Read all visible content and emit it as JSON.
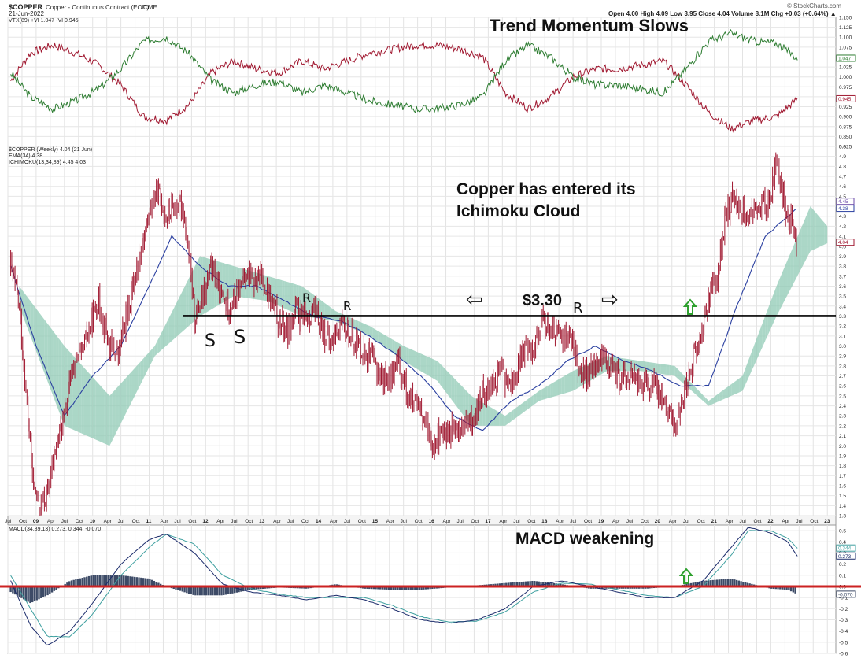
{
  "header": {
    "symbol": "$COPPER",
    "name": "Copper - Continuous Contract (EOD)",
    "exchange": "CME",
    "date": "21-Jun-2022",
    "brand": "© StockCharts.com",
    "quote": "Open 4.00  High 4.09  Low 3.95  Close 4.04  Volume 8.1M  Chg +0.03 (+0.64%) ▲"
  },
  "colors": {
    "vi_plus": "#2e7d32",
    "vi_minus": "#a01830",
    "price": "#a01830",
    "ema": "#2a3fa0",
    "cloud_bull": "#8fc9b4",
    "cloud_bear": "#c8a2e8",
    "macd": "#1a2a6a",
    "signal": "#3fa0a0",
    "histogram": "#3c4a66",
    "support_line": "#000000",
    "zero_line": "#cc2222",
    "up_arrow": "#2ea02e"
  },
  "annotations": {
    "trend_title": "Trend Momentum Slows",
    "cloud_line1": "Copper has entered its",
    "cloud_line2": "Ichimoku Cloud",
    "level": "$3.30",
    "macd_title": "MACD weakening",
    "resistance_marks": [
      "R",
      "R",
      "R"
    ],
    "support_marks": [
      "S",
      "S"
    ],
    "left_arrow": "⇦",
    "right_arrow": "⇨"
  },
  "chart_data": [
    {
      "type": "line",
      "panel": "vortex",
      "legend": "VTX(89) +VI 1.047 -VI 0.945",
      "ylim": [
        0.825,
        1.15
      ],
      "yticks": [
        1.15,
        1.125,
        1.1,
        1.075,
        1.05,
        1.025,
        1.0,
        0.975,
        0.95,
        0.925,
        0.9,
        0.875,
        0.85,
        0.825
      ],
      "ytick_labels": [
        "1.150",
        "1.125",
        "1.100",
        "1.075",
        "1.050",
        "1.025",
        "1.000",
        "0.975",
        "0.950",
        "0.925",
        "0.900",
        "0.875",
        "0.850",
        "0.825"
      ],
      "value_tags": [
        1.047,
        0.945
      ],
      "series": [
        {
          "name": "+VI",
          "x": [
            2008.55,
            2008.9,
            2009.3,
            2009.7,
            2010.1,
            2010.5,
            2010.9,
            2011.3,
            2011.7,
            2012.1,
            2012.5,
            2012.9,
            2013.3,
            2013.7,
            2014.1,
            2014.5,
            2014.9,
            2015.3,
            2015.7,
            2016.1,
            2016.5,
            2016.9,
            2017.3,
            2017.7,
            2018.1,
            2018.5,
            2018.9,
            2019.3,
            2019.7,
            2020.1,
            2020.5,
            2020.9,
            2021.3,
            2021.7,
            2022.1,
            2022.47
          ],
          "y": [
            1.01,
            0.95,
            0.92,
            0.94,
            0.97,
            1.02,
            1.09,
            1.1,
            1.06,
            0.99,
            0.96,
            0.98,
            0.99,
            0.96,
            0.98,
            0.96,
            0.94,
            0.93,
            0.92,
            0.92,
            0.93,
            0.95,
            1.04,
            1.08,
            1.05,
            1.0,
            0.98,
            0.98,
            0.97,
            0.96,
            1.02,
            1.09,
            1.11,
            1.09,
            1.085,
            1.047
          ]
        },
        {
          "name": "-VI",
          "x": [
            2008.55,
            2008.9,
            2009.3,
            2009.7,
            2010.1,
            2010.5,
            2010.9,
            2011.3,
            2011.7,
            2012.1,
            2012.5,
            2012.9,
            2013.3,
            2013.7,
            2014.1,
            2014.5,
            2014.9,
            2015.3,
            2015.7,
            2016.1,
            2016.5,
            2016.9,
            2017.3,
            2017.7,
            2018.1,
            2018.5,
            2018.9,
            2019.3,
            2019.7,
            2020.1,
            2020.5,
            2020.9,
            2021.3,
            2021.7,
            2022.1,
            2022.47
          ],
          "y": [
            0.99,
            1.06,
            1.08,
            1.06,
            1.03,
            0.98,
            0.9,
            0.89,
            0.93,
            1.01,
            1.04,
            1.02,
            1.01,
            1.04,
            1.02,
            1.04,
            1.06,
            1.07,
            1.08,
            1.08,
            1.07,
            1.05,
            0.96,
            0.92,
            0.95,
            1.0,
            1.02,
            1.02,
            1.03,
            1.04,
            0.98,
            0.91,
            0.87,
            0.89,
            0.9,
            0.945
          ]
        }
      ]
    },
    {
      "type": "line",
      "panel": "price",
      "legend_lines": [
        "$COPPER (Weekly) 4.04 (21 Jun)",
        "EMA(34) 4.38",
        "ICHIMOKU(13,34,89) 4.45 4.03"
      ],
      "x_ticks": [
        "Jul",
        "Oct",
        "09",
        "Apr",
        "Jul",
        "Oct",
        "10",
        "Apr",
        "Jul",
        "Oct",
        "11",
        "Apr",
        "Jul",
        "Oct",
        "12",
        "Apr",
        "Jul",
        "Oct",
        "13",
        "Apr",
        "Jul",
        "Oct",
        "14",
        "Apr",
        "Jul",
        "Oct",
        "15",
        "Apr",
        "Jul",
        "Oct",
        "16",
        "Apr",
        "Jul",
        "Oct",
        "17",
        "Apr",
        "Jul",
        "Oct",
        "18",
        "Apr",
        "Jul",
        "Oct",
        "19",
        "Apr",
        "Jul",
        "Oct",
        "20",
        "Apr",
        "Jul",
        "Oct",
        "21",
        "Apr",
        "Jul",
        "Oct",
        "22",
        "Apr",
        "Jul",
        "Oct",
        "23"
      ],
      "xlim": [
        2008.5,
        2023.15
      ],
      "ylim": [
        1.3,
        5.0
      ],
      "yticks": [
        5.0,
        4.9,
        4.8,
        4.7,
        4.6,
        4.5,
        4.4,
        4.3,
        4.2,
        4.1,
        4.0,
        3.9,
        3.8,
        3.7,
        3.6,
        3.5,
        3.4,
        3.3,
        3.2,
        3.1,
        3.0,
        2.9,
        2.8,
        2.7,
        2.6,
        2.5,
        2.4,
        2.3,
        2.2,
        2.1,
        2.0,
        1.9,
        1.8,
        1.7,
        1.6,
        1.5,
        1.4,
        1.3
      ],
      "ytick_labels": [
        "5.0",
        "4.9",
        "4.8",
        "4.7",
        "4.6",
        "4.5",
        "4.4",
        "4.3",
        "4.2",
        "4.1",
        "4.0",
        "3.9",
        "3.8",
        "3.7",
        "3.6",
        "3.5",
        "3.4",
        "3.3",
        "3.2",
        "3.1",
        "3.0",
        "2.9",
        "2.8",
        "2.7",
        "2.6",
        "2.5",
        "2.4",
        "2.3",
        "2.2",
        "2.1",
        "2.0",
        "1.9",
        "1.8",
        "1.7",
        "1.6",
        "1.5",
        "1.4",
        "1.3"
      ],
      "value_tags": [
        4.45,
        4.38,
        4.04
      ],
      "support_level": 3.3,
      "series": [
        {
          "name": "$COPPER",
          "x": [
            2008.55,
            2008.7,
            2008.85,
            2008.95,
            2009.05,
            2009.2,
            2009.35,
            2009.5,
            2009.65,
            2009.8,
            2009.95,
            2010.1,
            2010.3,
            2010.45,
            2010.6,
            2010.75,
            2010.9,
            2011.05,
            2011.15,
            2011.3,
            2011.45,
            2011.6,
            2011.72,
            2011.8,
            2011.95,
            2012.1,
            2012.25,
            2012.4,
            2012.55,
            2012.7,
            2012.85,
            2013.0,
            2013.15,
            2013.3,
            2013.45,
            2013.6,
            2013.75,
            2013.9,
            2014.05,
            2014.2,
            2014.35,
            2014.5,
            2014.65,
            2014.8,
            2014.95,
            2015.1,
            2015.25,
            2015.4,
            2015.55,
            2015.7,
            2015.85,
            2016.0,
            2016.15,
            2016.3,
            2016.45,
            2016.6,
            2016.75,
            2016.9,
            2017.05,
            2017.2,
            2017.35,
            2017.5,
            2017.65,
            2017.8,
            2017.95,
            2018.1,
            2018.25,
            2018.45,
            2018.6,
            2018.75,
            2018.9,
            2019.05,
            2019.2,
            2019.35,
            2019.5,
            2019.65,
            2019.8,
            2019.95,
            2020.1,
            2020.2,
            2020.3,
            2020.45,
            2020.6,
            2020.75,
            2020.9,
            2021.05,
            2021.2,
            2021.35,
            2021.5,
            2021.65,
            2021.8,
            2021.95,
            2022.1,
            2022.2,
            2022.3,
            2022.4,
            2022.47
          ],
          "y": [
            3.8,
            3.4,
            2.3,
            1.6,
            1.4,
            1.5,
            2.0,
            2.3,
            2.8,
            2.9,
            3.2,
            3.45,
            3.0,
            2.9,
            3.3,
            3.7,
            4.1,
            4.4,
            4.55,
            4.3,
            4.4,
            4.4,
            3.8,
            3.3,
            3.45,
            3.8,
            3.5,
            3.4,
            3.5,
            3.75,
            3.6,
            3.7,
            3.45,
            3.25,
            3.15,
            3.35,
            3.25,
            3.35,
            3.2,
            3.0,
            3.2,
            3.15,
            3.05,
            2.95,
            2.85,
            2.7,
            2.65,
            2.85,
            2.55,
            2.4,
            2.25,
            2.05,
            2.1,
            2.15,
            2.15,
            2.2,
            2.25,
            2.55,
            2.6,
            2.75,
            2.6,
            2.7,
            3.0,
            3.0,
            3.25,
            3.2,
            3.1,
            3.1,
            2.8,
            2.7,
            2.8,
            2.9,
            2.75,
            2.65,
            2.7,
            2.65,
            2.6,
            2.6,
            2.5,
            2.3,
            2.2,
            2.5,
            2.85,
            3.05,
            3.5,
            3.65,
            4.3,
            4.5,
            4.35,
            4.3,
            4.4,
            4.4,
            4.8,
            4.55,
            4.3,
            4.2,
            4.04
          ]
        },
        {
          "name": "EMA(34)",
          "x": [
            2008.55,
            2009.0,
            2009.5,
            2010.0,
            2010.5,
            2011.0,
            2011.4,
            2011.9,
            2012.4,
            2012.9,
            2013.4,
            2013.9,
            2014.4,
            2014.9,
            2015.4,
            2015.9,
            2016.4,
            2016.9,
            2017.4,
            2017.9,
            2018.4,
            2018.9,
            2019.4,
            2019.9,
            2020.4,
            2020.9,
            2021.4,
            2021.9,
            2022.2,
            2022.47
          ],
          "y": [
            3.8,
            3.0,
            2.3,
            2.7,
            3.0,
            3.6,
            4.1,
            3.8,
            3.6,
            3.6,
            3.45,
            3.3,
            3.25,
            3.1,
            2.9,
            2.65,
            2.3,
            2.15,
            2.45,
            2.6,
            2.85,
            3.0,
            2.85,
            2.75,
            2.6,
            2.6,
            3.4,
            4.1,
            4.25,
            4.38
          ]
        },
        {
          "name": "Cloud Span A",
          "x": [
            2008.7,
            2009.5,
            2010.3,
            2011.1,
            2011.9,
            2012.5,
            2013.1,
            2013.7,
            2014.3,
            2014.9,
            2015.5,
            2016.1,
            2016.7,
            2017.3,
            2017.9,
            2018.5,
            2019.1,
            2019.7,
            2020.3,
            2020.9,
            2021.5,
            2022.1,
            2022.7,
            2023.0
          ],
          "y": [
            3.6,
            3.0,
            2.5,
            3.0,
            3.9,
            3.8,
            3.7,
            3.6,
            3.35,
            3.2,
            3.0,
            2.85,
            2.5,
            2.3,
            2.55,
            2.75,
            2.9,
            2.85,
            2.8,
            2.45,
            2.7,
            3.6,
            4.4,
            4.2
          ]
        },
        {
          "name": "Cloud Span B",
          "x": [
            2008.7,
            2009.5,
            2010.3,
            2011.1,
            2011.9,
            2012.5,
            2013.1,
            2013.7,
            2014.3,
            2014.9,
            2015.5,
            2016.1,
            2016.7,
            2017.3,
            2017.9,
            2018.5,
            2019.1,
            2019.7,
            2020.3,
            2020.9,
            2021.5,
            2022.1,
            2022.7,
            2023.0
          ],
          "y": [
            3.4,
            2.2,
            2.0,
            2.9,
            3.3,
            3.5,
            3.45,
            3.3,
            3.25,
            3.1,
            2.85,
            2.65,
            2.2,
            2.2,
            2.45,
            2.55,
            2.75,
            2.75,
            2.7,
            2.4,
            2.55,
            3.3,
            3.95,
            4.03
          ]
        }
      ]
    },
    {
      "type": "line",
      "panel": "macd",
      "legend": "MACD(34,89,13) 0.273, 0.344, -0.070",
      "ylim": [
        -0.6,
        0.55
      ],
      "yticks": [
        0.5,
        0.4,
        0.3,
        0.2,
        0.1,
        0.0,
        -0.1,
        -0.2,
        -0.3,
        -0.4,
        -0.5,
        -0.6
      ],
      "ytick_labels": [
        "0.5",
        "0.4",
        "0.3",
        "0.2",
        "0.1",
        "0.0",
        "-0.1",
        "-0.2",
        "-0.3",
        "-0.4",
        "-0.5",
        "-0.6"
      ],
      "value_tags": [
        0.344,
        0.273,
        -0.07
      ],
      "series": [
        {
          "name": "MACD",
          "x": [
            2008.55,
            2008.9,
            2009.2,
            2009.6,
            2010.0,
            2010.5,
            2011.0,
            2011.3,
            2011.8,
            2012.3,
            2012.8,
            2013.3,
            2013.8,
            2014.3,
            2014.8,
            2015.3,
            2015.8,
            2016.3,
            2016.8,
            2017.3,
            2017.8,
            2018.3,
            2018.8,
            2019.3,
            2019.8,
            2020.3,
            2020.8,
            2021.3,
            2021.6,
            2022.0,
            2022.3,
            2022.47
          ],
          "y": [
            0.05,
            -0.35,
            -0.53,
            -0.4,
            -0.15,
            0.2,
            0.42,
            0.47,
            0.3,
            0.02,
            -0.05,
            -0.08,
            -0.12,
            -0.08,
            -0.12,
            -0.2,
            -0.3,
            -0.33,
            -0.3,
            -0.2,
            0.0,
            0.05,
            0.0,
            -0.05,
            -0.1,
            -0.1,
            0.05,
            0.35,
            0.53,
            0.48,
            0.4,
            0.273
          ]
        },
        {
          "name": "Signal",
          "x": [
            2008.55,
            2008.9,
            2009.2,
            2009.6,
            2010.0,
            2010.5,
            2011.0,
            2011.3,
            2011.8,
            2012.3,
            2012.8,
            2013.3,
            2013.8,
            2014.3,
            2014.8,
            2015.3,
            2015.8,
            2016.3,
            2016.8,
            2017.3,
            2017.8,
            2018.3,
            2018.8,
            2019.3,
            2019.8,
            2020.3,
            2020.8,
            2021.3,
            2021.6,
            2022.0,
            2022.3,
            2022.47
          ],
          "y": [
            0.1,
            -0.2,
            -0.45,
            -0.45,
            -0.25,
            0.1,
            0.35,
            0.47,
            0.38,
            0.1,
            -0.02,
            -0.07,
            -0.1,
            -0.1,
            -0.1,
            -0.17,
            -0.27,
            -0.32,
            -0.31,
            -0.23,
            -0.05,
            0.03,
            0.02,
            -0.03,
            -0.08,
            -0.1,
            0.0,
            0.28,
            0.5,
            0.5,
            0.43,
            0.344
          ]
        }
      ]
    }
  ]
}
